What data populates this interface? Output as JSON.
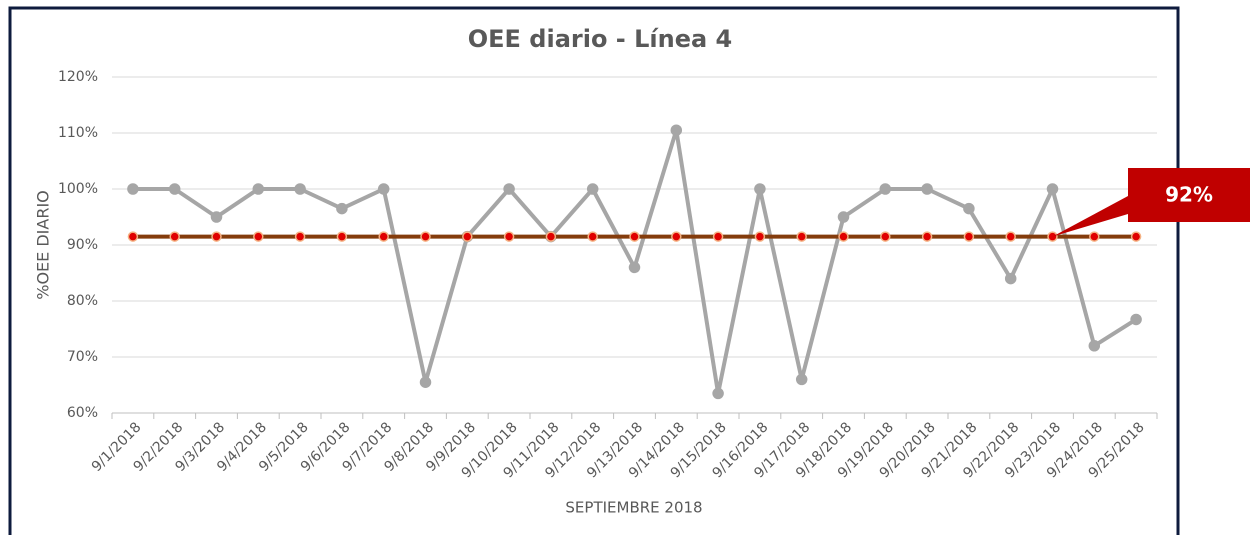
{
  "chart_data": {
    "type": "line",
    "title": "OEE diario - Línea 4",
    "x_label": "SEPTIEMBRE 2018",
    "y_label": "%OEE DIARIO",
    "categories": [
      "9/1/2018",
      "9/2/2018",
      "9/3/2018",
      "9/4/2018",
      "9/5/2018",
      "9/6/2018",
      "9/7/2018",
      "9/8/2018",
      "9/9/2018",
      "9/10/2018",
      "9/11/2018",
      "9/12/2018",
      "9/13/2018",
      "9/14/2018",
      "9/15/2018",
      "9/16/2018",
      "9/17/2018",
      "9/18/2018",
      "9/19/2018",
      "9/20/2018",
      "9/21/2018",
      "9/22/2018",
      "9/23/2018",
      "9/24/2018",
      "9/25/2018"
    ],
    "series": [
      {
        "color": "#a6a6a6",
        "marker_color": "#a6a6a6",
        "values": [
          100,
          100,
          95,
          100,
          100,
          96.5,
          100,
          65.5,
          91.5,
          100,
          91.5,
          100,
          86,
          110.5,
          63.5,
          100,
          66,
          95,
          100,
          100,
          96.5,
          84,
          100,
          72,
          76.7
        ]
      },
      {
        "color": "#843c0c",
        "marker_color": "#e00000",
        "values": [
          91.5,
          91.5,
          91.5,
          91.5,
          91.5,
          91.5,
          91.5,
          91.5,
          91.5,
          91.5,
          91.5,
          91.5,
          91.5,
          91.5,
          91.5,
          91.5,
          91.5,
          91.5,
          91.5,
          91.5,
          91.5,
          91.5,
          91.5,
          91.5,
          91.5
        ]
      }
    ],
    "annotation": {
      "text": "92%",
      "color": "#c00000"
    },
    "ylim": [
      60,
      120
    ],
    "yticks": [
      {
        "value": 60,
        "label": "60%"
      },
      {
        "value": 70,
        "label": "70%"
      },
      {
        "value": 80,
        "label": "80%"
      },
      {
        "value": 90,
        "label": "90%"
      },
      {
        "value": 100,
        "label": "100%"
      },
      {
        "value": 110,
        "label": "110%"
      },
      {
        "value": 120,
        "label": "120%"
      }
    ],
    "grid": true
  }
}
